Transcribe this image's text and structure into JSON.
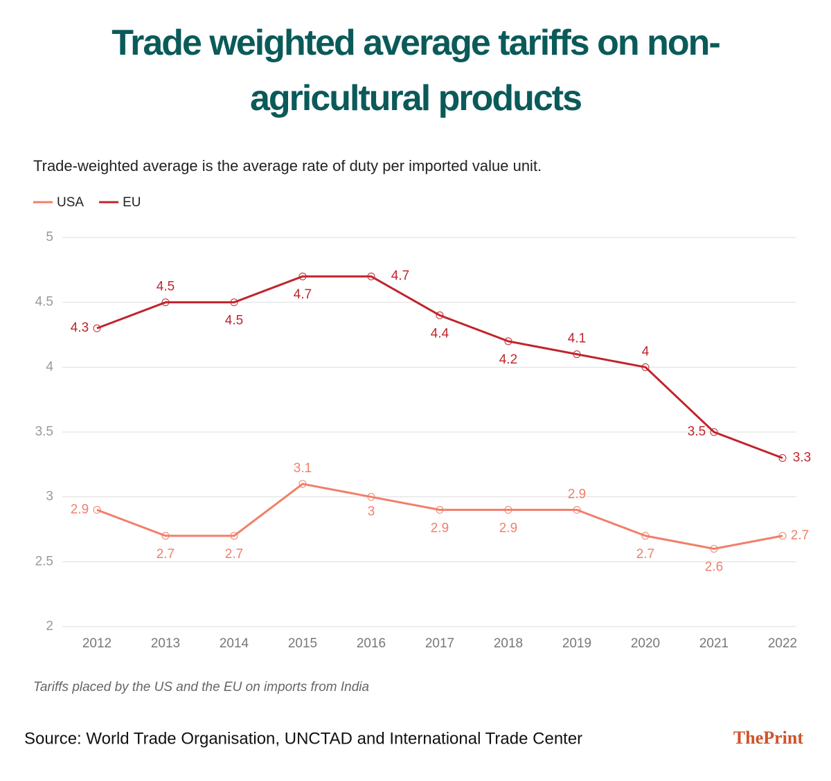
{
  "chart_data": {
    "type": "line",
    "title": "Trade weighted average tariffs on non-agricultural products",
    "subtitle": "Trade-weighted average is the average rate of duty per imported value unit.",
    "categories": [
      "2012",
      "2013",
      "2014",
      "2015",
      "2016",
      "2017",
      "2018",
      "2019",
      "2020",
      "2021",
      "2022"
    ],
    "series": [
      {
        "name": "USA",
        "color": "#f07f6a",
        "values": [
          2.9,
          2.7,
          2.7,
          3.1,
          3,
          2.9,
          2.9,
          2.9,
          2.7,
          2.6,
          2.7
        ]
      },
      {
        "name": "EU",
        "color": "#c0242c",
        "values": [
          4.3,
          4.5,
          4.5,
          4.7,
          4.7,
          4.4,
          4.2,
          4.1,
          4,
          3.5,
          3.3
        ]
      }
    ],
    "ylim": [
      2,
      5
    ],
    "yticks": [
      2,
      2.5,
      3,
      3.5,
      4,
      4.5,
      5
    ],
    "grid": true,
    "note": "Tariffs placed by the US and the EU on imports from India",
    "source": "Source: World Trade Organisation, UNCTAD and International Trade Center",
    "brand": "ThePrint"
  }
}
